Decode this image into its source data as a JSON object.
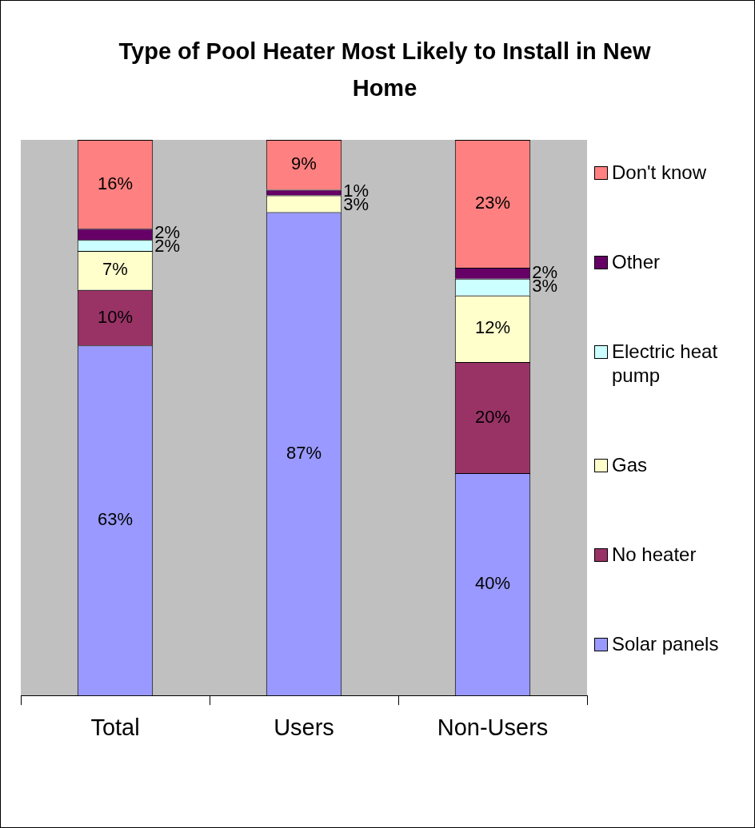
{
  "chart_data": {
    "type": "bar",
    "title": "Type of Pool Heater Most Likely to Install in New Home",
    "categories": [
      "Total",
      "Users",
      "Non-Users"
    ],
    "stacked": true,
    "ylim": [
      0,
      100
    ],
    "tick_labels": "x",
    "legend": "right",
    "grid": false,
    "series": [
      {
        "name": "Solar panels",
        "color": "#9999ff",
        "values": [
          63,
          87,
          40
        ],
        "value_labels": [
          "63%",
          "87%",
          "40%"
        ]
      },
      {
        "name": "No heater",
        "color": "#993366",
        "values": [
          10,
          0,
          20
        ],
        "value_labels": [
          "10%",
          null,
          "20%"
        ]
      },
      {
        "name": "Gas",
        "color": "#ffffcc",
        "values": [
          7,
          3,
          12
        ],
        "value_labels": [
          "7%",
          "3%",
          "12%"
        ]
      },
      {
        "name": "Electric heat pump",
        "color": "#ccffff",
        "values": [
          2,
          0,
          3
        ],
        "value_labels": [
          "2%",
          null,
          "3%"
        ]
      },
      {
        "name": "Other",
        "color": "#660066",
        "values": [
          2,
          1,
          2
        ],
        "value_labels": [
          "2%",
          "1%",
          "2%"
        ]
      },
      {
        "name": "Don't know",
        "color": "#ff8080",
        "values": [
          16,
          9,
          23
        ],
        "value_labels": [
          "16%",
          "9%",
          "23%"
        ]
      }
    ]
  }
}
